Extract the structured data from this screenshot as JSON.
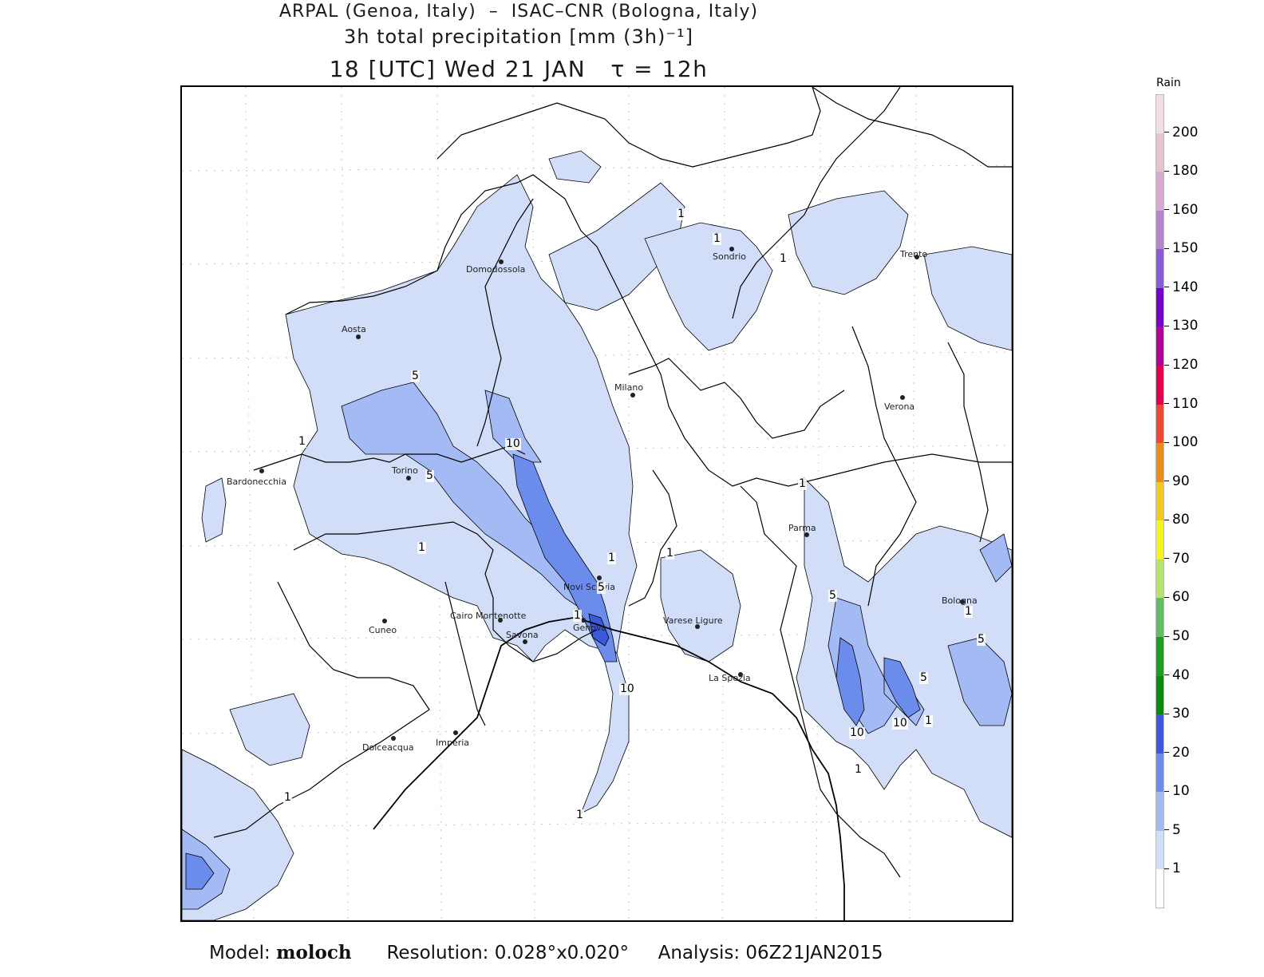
{
  "header": {
    "line1": "ARPAL (Genoa, Italy)  –  ISAC–CNR (Bologna, Italy)",
    "line2": "3h total precipitation [mm (3h)⁻¹]",
    "line3": "18 [UTC] Wed 21 JAN   τ = 12h"
  },
  "map": {
    "cities": [
      {
        "name": "Domodossola"
      },
      {
        "name": "Aosta"
      },
      {
        "name": "Sondrio"
      },
      {
        "name": "Trento"
      },
      {
        "name": "Milano"
      },
      {
        "name": "Verona"
      },
      {
        "name": "Torino"
      },
      {
        "name": "Bardonecchia"
      },
      {
        "name": "Parma"
      },
      {
        "name": "Novi Scrivia"
      },
      {
        "name": "Bologna"
      },
      {
        "name": "Cairo Montenotte"
      },
      {
        "name": "Savona"
      },
      {
        "name": "Genova"
      },
      {
        "name": "Varese Ligure"
      },
      {
        "name": "Cuneo"
      },
      {
        "name": "La Spezia"
      },
      {
        "name": "Dolceacqua"
      },
      {
        "name": "Imperia"
      }
    ],
    "contour_labels": [
      "1",
      "1",
      "1",
      "5",
      "1",
      "5",
      "10",
      "1",
      "5",
      "1",
      "1",
      "1",
      "10",
      "1",
      "5",
      "1",
      "10",
      "1",
      "5",
      "10",
      "1",
      "1",
      "5",
      "1"
    ]
  },
  "legend": {
    "title": "Rain",
    "levels": [
      {
        "label": "200",
        "color": "#f2dde2"
      },
      {
        "label": "180",
        "color": "#e7c4cf"
      },
      {
        "label": "160",
        "color": "#d9aad0"
      },
      {
        "label": "150",
        "color": "#b784d1"
      },
      {
        "label": "140",
        "color": "#8a5bd8"
      },
      {
        "label": "130",
        "color": "#7a00c8"
      },
      {
        "label": "120",
        "color": "#b0009c"
      },
      {
        "label": "110",
        "color": "#e00050"
      },
      {
        "label": "100",
        "color": "#f04830"
      },
      {
        "label": "90",
        "color": "#e88c1c"
      },
      {
        "label": "80",
        "color": "#f4c81c"
      },
      {
        "label": "70",
        "color": "#f4f41c"
      },
      {
        "label": "60",
        "color": "#b4e46c"
      },
      {
        "label": "50",
        "color": "#60c060"
      },
      {
        "label": "40",
        "color": "#1ca01c"
      },
      {
        "label": "30",
        "color": "#088c08"
      },
      {
        "label": "20",
        "color": "#3c5ad8"
      },
      {
        "label": "10",
        "color": "#6c8cec"
      },
      {
        "label": "5",
        "color": "#a4baf4"
      },
      {
        "label": "1",
        "color": "#d2ddf8"
      },
      {
        "label": "",
        "color": "#ffffff"
      }
    ]
  },
  "footer": {
    "model_label": "Model:",
    "model_name": "moloch",
    "resolution": "Resolution: 0.028°x0.020°",
    "analysis": "Analysis: 06Z21JAN2015"
  }
}
